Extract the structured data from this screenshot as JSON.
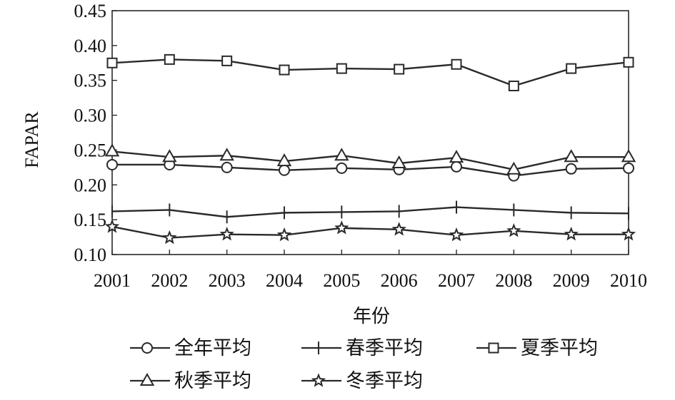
{
  "chart_data": {
    "type": "line",
    "title": "",
    "xlabel": "年份",
    "ylabel": "FAPAR",
    "ylim": [
      0.1,
      0.45
    ],
    "yticks": [
      "0.10",
      "0.15",
      "0.20",
      "0.25",
      "0.30",
      "0.35",
      "0.40",
      "0.45"
    ],
    "categories": [
      "2001",
      "2002",
      "2003",
      "2004",
      "2005",
      "2006",
      "2007",
      "2008",
      "2009",
      "2010"
    ],
    "grid": false,
    "legend_position": "bottom",
    "series": [
      {
        "name": "全年平均",
        "marker": "circle",
        "values": [
          0.229,
          0.229,
          0.225,
          0.221,
          0.224,
          0.222,
          0.226,
          0.213,
          0.223,
          0.224
        ]
      },
      {
        "name": "春季平均",
        "marker": "plus",
        "values": [
          0.162,
          0.164,
          0.154,
          0.16,
          0.161,
          0.162,
          0.168,
          0.164,
          0.16,
          0.159
        ]
      },
      {
        "name": "夏季平均",
        "marker": "square",
        "values": [
          0.375,
          0.38,
          0.378,
          0.365,
          0.367,
          0.366,
          0.373,
          0.342,
          0.367,
          0.376
        ]
      },
      {
        "name": "秋季平均",
        "marker": "triangle",
        "values": [
          0.248,
          0.24,
          0.242,
          0.234,
          0.242,
          0.231,
          0.239,
          0.222,
          0.24,
          0.24
        ]
      },
      {
        "name": "冬季平均",
        "marker": "star",
        "values": [
          0.14,
          0.124,
          0.129,
          0.128,
          0.138,
          0.136,
          0.128,
          0.134,
          0.129,
          0.129
        ]
      }
    ]
  }
}
